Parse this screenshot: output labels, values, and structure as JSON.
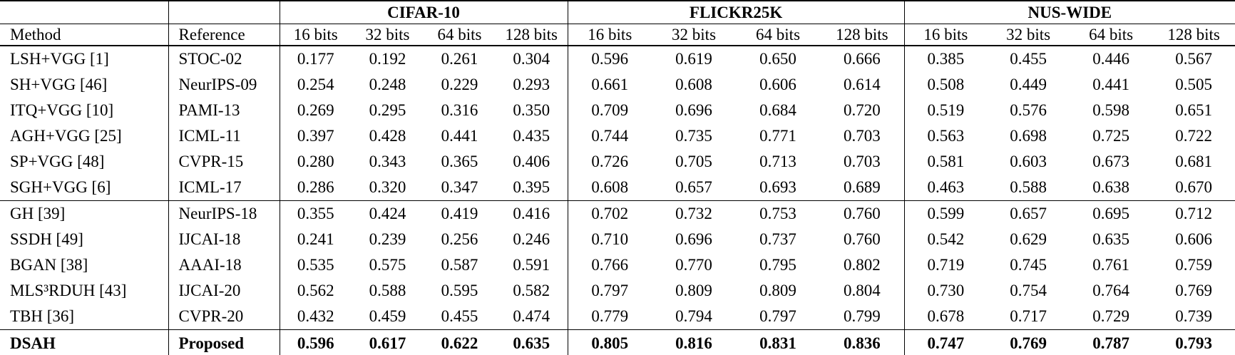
{
  "table": {
    "header": {
      "method": "Method",
      "reference": "Reference",
      "groups": [
        {
          "label": "CIFAR-10",
          "bits": [
            "16 bits",
            "32 bits",
            "64 bits",
            "128 bits"
          ]
        },
        {
          "label": "FLICKR25K",
          "bits": [
            "16 bits",
            "32 bits",
            "64 bits",
            "128 bits"
          ]
        },
        {
          "label": "NUS-WIDE",
          "bits": [
            "16 bits",
            "32 bits",
            "64 bits",
            "128 bits"
          ]
        }
      ]
    },
    "rows": [
      {
        "method": "LSH+VGG [1]",
        "reference": "STOC-02",
        "section_start": false,
        "bold": false,
        "values": [
          "0.177",
          "0.192",
          "0.261",
          "0.304",
          "0.596",
          "0.619",
          "0.650",
          "0.666",
          "0.385",
          "0.455",
          "0.446",
          "0.567"
        ]
      },
      {
        "method": "SH+VGG [46]",
        "reference": "NeurIPS-09",
        "section_start": false,
        "bold": false,
        "values": [
          "0.254",
          "0.248",
          "0.229",
          "0.293",
          "0.661",
          "0.608",
          "0.606",
          "0.614",
          "0.508",
          "0.449",
          "0.441",
          "0.505"
        ]
      },
      {
        "method": "ITQ+VGG [10]",
        "reference": "PAMI-13",
        "section_start": false,
        "bold": false,
        "values": [
          "0.269",
          "0.295",
          "0.316",
          "0.350",
          "0.709",
          "0.696",
          "0.684",
          "0.720",
          "0.519",
          "0.576",
          "0.598",
          "0.651"
        ]
      },
      {
        "method": "AGH+VGG [25]",
        "reference": "ICML-11",
        "section_start": false,
        "bold": false,
        "values": [
          "0.397",
          "0.428",
          "0.441",
          "0.435",
          "0.744",
          "0.735",
          "0.771",
          "0.703",
          "0.563",
          "0.698",
          "0.725",
          "0.722"
        ]
      },
      {
        "method": "SP+VGG [48]",
        "reference": "CVPR-15",
        "section_start": false,
        "bold": false,
        "values": [
          "0.280",
          "0.343",
          "0.365",
          "0.406",
          "0.726",
          "0.705",
          "0.713",
          "0.703",
          "0.581",
          "0.603",
          "0.673",
          "0.681"
        ]
      },
      {
        "method": "SGH+VGG [6]",
        "reference": "ICML-17",
        "section_start": false,
        "bold": false,
        "values": [
          "0.286",
          "0.320",
          "0.347",
          "0.395",
          "0.608",
          "0.657",
          "0.693",
          "0.689",
          "0.463",
          "0.588",
          "0.638",
          "0.670"
        ]
      },
      {
        "method": "GH [39]",
        "reference": "NeurIPS-18",
        "section_start": true,
        "bold": false,
        "values": [
          "0.355",
          "0.424",
          "0.419",
          "0.416",
          "0.702",
          "0.732",
          "0.753",
          "0.760",
          "0.599",
          "0.657",
          "0.695",
          "0.712"
        ]
      },
      {
        "method": "SSDH [49]",
        "reference": "IJCAI-18",
        "section_start": false,
        "bold": false,
        "values": [
          "0.241",
          "0.239",
          "0.256",
          "0.246",
          "0.710",
          "0.696",
          "0.737",
          "0.760",
          "0.542",
          "0.629",
          "0.635",
          "0.606"
        ]
      },
      {
        "method": "BGAN [38]",
        "reference": "AAAI-18",
        "section_start": false,
        "bold": false,
        "values": [
          "0.535",
          "0.575",
          "0.587",
          "0.591",
          "0.766",
          "0.770",
          "0.795",
          "0.802",
          "0.719",
          "0.745",
          "0.761",
          "0.759"
        ]
      },
      {
        "method": "MLS³RDUH [43]",
        "reference": "IJCAI-20",
        "section_start": false,
        "bold": false,
        "values": [
          "0.562",
          "0.588",
          "0.595",
          "0.582",
          "0.797",
          "0.809",
          "0.809",
          "0.804",
          "0.730",
          "0.754",
          "0.764",
          "0.769"
        ]
      },
      {
        "method": "TBH [36]",
        "reference": "CVPR-20",
        "section_start": false,
        "bold": false,
        "values": [
          "0.432",
          "0.459",
          "0.455",
          "0.474",
          "0.779",
          "0.794",
          "0.797",
          "0.799",
          "0.678",
          "0.717",
          "0.729",
          "0.739"
        ]
      },
      {
        "method": "DSAH",
        "reference": "Proposed",
        "section_start": true,
        "bold": true,
        "values": [
          "0.596",
          "0.617",
          "0.622",
          "0.635",
          "0.805",
          "0.816",
          "0.831",
          "0.836",
          "0.747",
          "0.769",
          "0.787",
          "0.793"
        ]
      }
    ]
  },
  "colors": {
    "text": "#000000",
    "rule": "#000000",
    "background": "#ffffff"
  }
}
